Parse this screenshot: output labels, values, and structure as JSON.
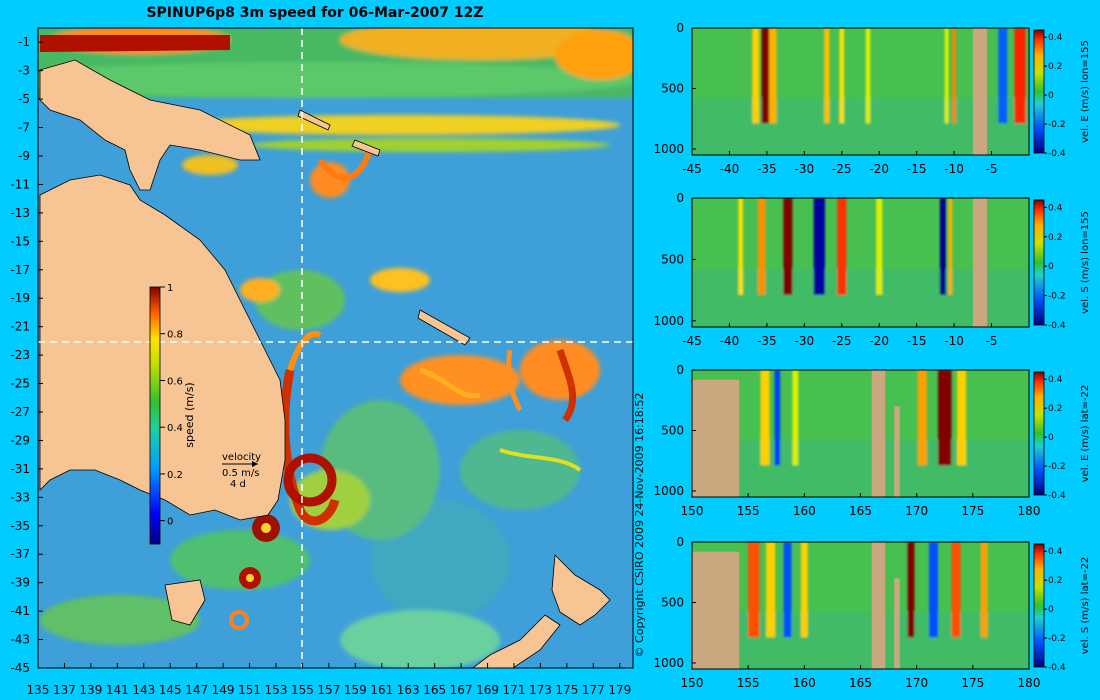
{
  "title": "SPINUP6p8 3m speed for 06-Mar-2007 12Z",
  "copyright": "© Copyright CSIRO 2009   24-Nov-2009 16:18:52",
  "colors": {
    "background": "#00ccff",
    "land": "#f7c493",
    "section_land": "#c9a87f",
    "crosshair": "#ffffff"
  },
  "map": {
    "x_ticks": [
      "135",
      "137",
      "139",
      "141",
      "143",
      "145",
      "147",
      "149",
      "151",
      "153",
      "155",
      "157",
      "159",
      "161",
      "163",
      "165",
      "167",
      "169",
      "171",
      "173",
      "175",
      "177",
      "179"
    ],
    "y_ticks": [
      "-1",
      "-3",
      "-5",
      "-7",
      "-9",
      "-11",
      "-13",
      "-15",
      "-17",
      "-19",
      "-21",
      "-23",
      "-25",
      "-27",
      "-29",
      "-31",
      "-33",
      "-35",
      "-37",
      "-39",
      "-41",
      "-43",
      "-45"
    ],
    "crosshair_lon": 155,
    "crosshair_lat": -22,
    "colorbar": {
      "label": "speed (m/s)",
      "ticks": [
        "1",
        "0.8",
        "0.6",
        "0.4",
        "0.2",
        "0"
      ],
      "range": [
        -0.1,
        1.0
      ]
    },
    "velocity_legend": {
      "title": "velocity",
      "speed": "0.5 m/s",
      "duration": "4 d"
    }
  },
  "chart_data": [
    {
      "type": "heatmap",
      "title": "SPINUP6p8 3m speed for 06-Mar-2007 12Z",
      "x_axis": "longitude",
      "y_axis": "latitude",
      "xlim": [
        135,
        180
      ],
      "ylim": [
        -45,
        0
      ],
      "value_label": "speed (m/s)",
      "value_range": [
        -0.1,
        1.0
      ],
      "crosshair": {
        "lon": 155,
        "lat": -22
      }
    },
    {
      "type": "heatmap",
      "ylabel": "vel. E (m/s) lon=155",
      "x_ticks": [
        "-45",
        "-40",
        "-35",
        "-30",
        "-25",
        "-20",
        "-15",
        "-10",
        "-5"
      ],
      "y_ticks": [
        "0",
        "500",
        "1000"
      ],
      "cbar_ticks": [
        "0.4",
        "0.2",
        "0",
        "-0.2",
        "-0.4"
      ],
      "xlim": [
        -45,
        0
      ],
      "ylim": [
        1050,
        0
      ],
      "value_range": [
        -0.4,
        0.45
      ]
    },
    {
      "type": "heatmap",
      "ylabel": "vel. S (m/s) lon=155",
      "x_ticks": [
        "-45",
        "-40",
        "-35",
        "-30",
        "-25",
        "-20",
        "-15",
        "-10",
        "-5"
      ],
      "y_ticks": [
        "0",
        "500",
        "1000"
      ],
      "cbar_ticks": [
        "0.4",
        "0.2",
        "0",
        "-0.2",
        "-0.4"
      ],
      "xlim": [
        -45,
        0
      ],
      "ylim": [
        1050,
        0
      ],
      "value_range": [
        -0.4,
        0.45
      ]
    },
    {
      "type": "heatmap",
      "ylabel": "vel. E (m/s) lat=-22",
      "x_ticks": [
        "150",
        "155",
        "160",
        "165",
        "170",
        "175",
        "180"
      ],
      "y_ticks": [
        "0",
        "500",
        "1000"
      ],
      "cbar_ticks": [
        "0.4",
        "0.2",
        "0",
        "-0.2",
        "-0.4"
      ],
      "xlim": [
        150,
        180
      ],
      "ylim": [
        1050,
        0
      ],
      "value_range": [
        -0.4,
        0.45
      ]
    },
    {
      "type": "heatmap",
      "ylabel": "vel. S (m/s) lat=-22",
      "x_ticks": [
        "150",
        "155",
        "160",
        "165",
        "170",
        "175",
        "180"
      ],
      "y_ticks": [
        "0",
        "500",
        "1000"
      ],
      "cbar_ticks": [
        "0.4",
        "0.2",
        "0",
        "-0.2",
        "-0.4"
      ],
      "xlim": [
        150,
        180
      ],
      "ylim": [
        1050,
        0
      ],
      "value_range": [
        -0.4,
        0.45
      ]
    }
  ]
}
